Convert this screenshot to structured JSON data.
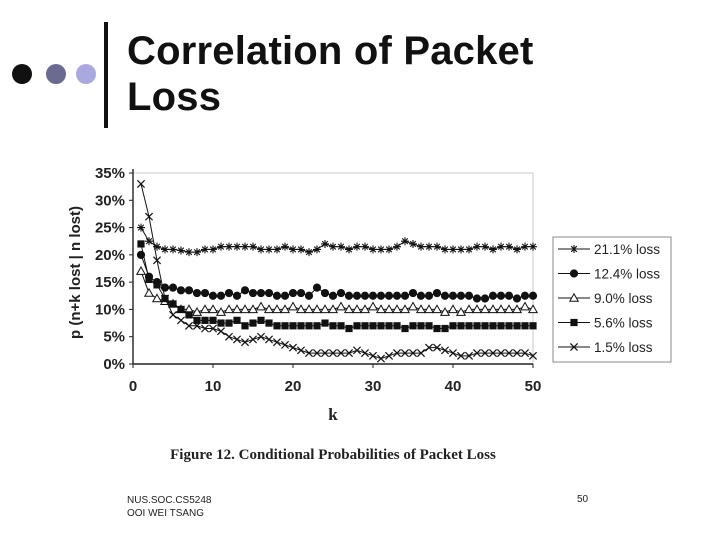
{
  "slide": {
    "title_line1": "Correlation of Packet",
    "title_line2": "Loss",
    "footer_line1": "NUS.SOC.CS5248",
    "footer_line2": "OOI WEI TSANG",
    "page_number": "50"
  },
  "colors": {
    "dot1": "#111111",
    "dot2": "#6b6b90",
    "dot3": "#a9a9df"
  },
  "chart_data": {
    "type": "line",
    "title": "",
    "caption": "Figure 12. Conditional Probabilities of Packet Loss",
    "xlabel": "k",
    "ylabel": "p (n+k lost | n lost)",
    "xlim": [
      0,
      50
    ],
    "ylim": [
      0,
      35
    ],
    "xticks": [
      0,
      10,
      20,
      30,
      40,
      50
    ],
    "xtick_labels": [
      "0",
      "10",
      "20",
      "30",
      "40",
      "50"
    ],
    "yticks": [
      0,
      5,
      10,
      15,
      20,
      25,
      30,
      35
    ],
    "ytick_labels": [
      "0%",
      "5%",
      "10%",
      "15%",
      "20%",
      "25%",
      "30%",
      "35%"
    ],
    "legend_position": "right",
    "x": [
      1,
      2,
      3,
      4,
      5,
      6,
      7,
      8,
      9,
      10,
      11,
      12,
      13,
      14,
      15,
      16,
      17,
      18,
      19,
      20,
      21,
      22,
      23,
      24,
      25,
      26,
      27,
      28,
      29,
      30,
      31,
      32,
      33,
      34,
      35,
      36,
      37,
      38,
      39,
      40,
      41,
      42,
      43,
      44,
      45,
      46,
      47,
      48,
      49,
      50
    ],
    "series": [
      {
        "name": "21.1% loss",
        "marker": "asterisk",
        "values": [
          25,
          22.5,
          21.5,
          21,
          21,
          20.8,
          20.5,
          20.5,
          21,
          21,
          21.5,
          21.5,
          21.5,
          21.5,
          21.5,
          21,
          21,
          21,
          21.5,
          21,
          21,
          20.5,
          21,
          22,
          21.5,
          21.5,
          21,
          21.5,
          21.5,
          21,
          21,
          21,
          21.5,
          22.5,
          22,
          21.5,
          21.5,
          21.5,
          21,
          21,
          21,
          21,
          21.5,
          21.5,
          21,
          21.5,
          21.5,
          21,
          21.5,
          21.5
        ]
      },
      {
        "name": "12.4% loss",
        "marker": "circle",
        "values": [
          20,
          16,
          15,
          14,
          14,
          13.5,
          13.5,
          13,
          13,
          12.5,
          12.5,
          13,
          12.5,
          13.5,
          13,
          13,
          13,
          12.5,
          12.5,
          13,
          13,
          12.5,
          14,
          13,
          12.5,
          13,
          12.5,
          12.5,
          12.5,
          12.5,
          12.5,
          12.5,
          12.5,
          12.5,
          13,
          12.5,
          12.5,
          13,
          12.5,
          12.5,
          12.5,
          12.5,
          12,
          12,
          12.5,
          12.5,
          12.5,
          12,
          12.5,
          12.5
        ]
      },
      {
        "name": "9.0% loss",
        "marker": "triangle",
        "values": [
          17,
          13,
          12,
          11.5,
          11,
          10,
          10,
          9.5,
          10,
          10,
          9.5,
          10,
          10,
          10,
          10,
          10.5,
          10,
          10,
          10,
          10.5,
          10,
          10,
          10,
          10,
          10,
          10.5,
          10,
          10,
          10,
          10.5,
          10,
          10,
          10,
          10,
          10.5,
          10,
          10,
          10,
          9.5,
          10,
          9.5,
          10,
          10,
          10,
          10,
          10,
          10,
          10,
          10.5,
          10
        ]
      },
      {
        "name": "5.6% loss",
        "marker": "square",
        "values": [
          22,
          15.5,
          14.5,
          12,
          11,
          10,
          9,
          8,
          8,
          8,
          7.5,
          7.5,
          8,
          7,
          7.5,
          8,
          7.5,
          7,
          7,
          7,
          7,
          7,
          7,
          7.5,
          7,
          7,
          6.5,
          7,
          7,
          7,
          7,
          7,
          7,
          6.5,
          7,
          7,
          7,
          6.5,
          6.5,
          7,
          7,
          7,
          7,
          7,
          7,
          7,
          7,
          7,
          7,
          7
        ]
      },
      {
        "name": "1.5% loss",
        "marker": "x",
        "values": [
          33,
          27,
          19,
          12,
          9,
          8,
          7,
          7,
          6.5,
          6.5,
          6,
          5,
          4.5,
          4,
          4.5,
          5,
          4.5,
          4,
          3.5,
          3,
          2.5,
          2,
          2,
          2,
          2,
          2,
          2,
          2.5,
          2,
          1.5,
          1,
          1.5,
          2,
          2,
          2,
          2,
          3,
          3,
          2.5,
          2,
          1.5,
          1.5,
          2,
          2,
          2,
          2,
          2,
          2,
          2,
          1.5
        ]
      }
    ]
  }
}
